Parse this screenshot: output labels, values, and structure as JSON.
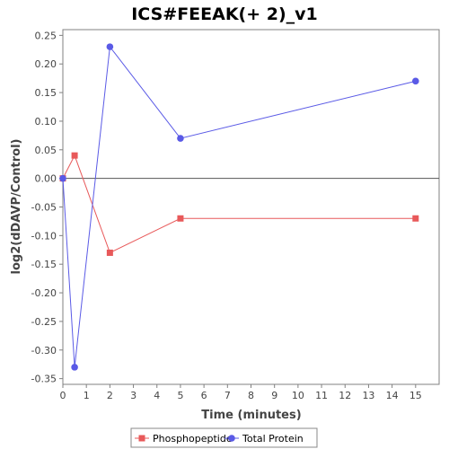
{
  "chart_data": {
    "type": "line",
    "title": "ICS#FEEAK(+ 2)_v1",
    "xlabel": "Time (minutes)",
    "ylabel": "log2(dDAVP/Control)",
    "xlim": [
      0,
      16
    ],
    "ylim": [
      -0.36,
      0.26
    ],
    "x_ticks": [
      0,
      1,
      2,
      3,
      4,
      5,
      6,
      7,
      8,
      9,
      10,
      11,
      12,
      13,
      14,
      15
    ],
    "y_ticks": [
      -0.35,
      -0.3,
      -0.25,
      -0.2,
      -0.15,
      -0.1,
      -0.05,
      0.0,
      0.05,
      0.1,
      0.15,
      0.2,
      0.25
    ],
    "zero_line": true,
    "grid": false,
    "legend_position": "bottom",
    "series": [
      {
        "name": "Phosphopeptide",
        "color": "#e8595a",
        "marker": "square",
        "x": [
          0,
          0.5,
          2,
          5,
          15
        ],
        "y": [
          0.0,
          0.04,
          -0.13,
          -0.07,
          -0.07
        ]
      },
      {
        "name": "Total Protein",
        "color": "#5a5ae6",
        "marker": "circle",
        "x": [
          0,
          0.5,
          2,
          5,
          15
        ],
        "y": [
          0.0,
          -0.33,
          0.23,
          0.07,
          0.17
        ]
      }
    ]
  }
}
